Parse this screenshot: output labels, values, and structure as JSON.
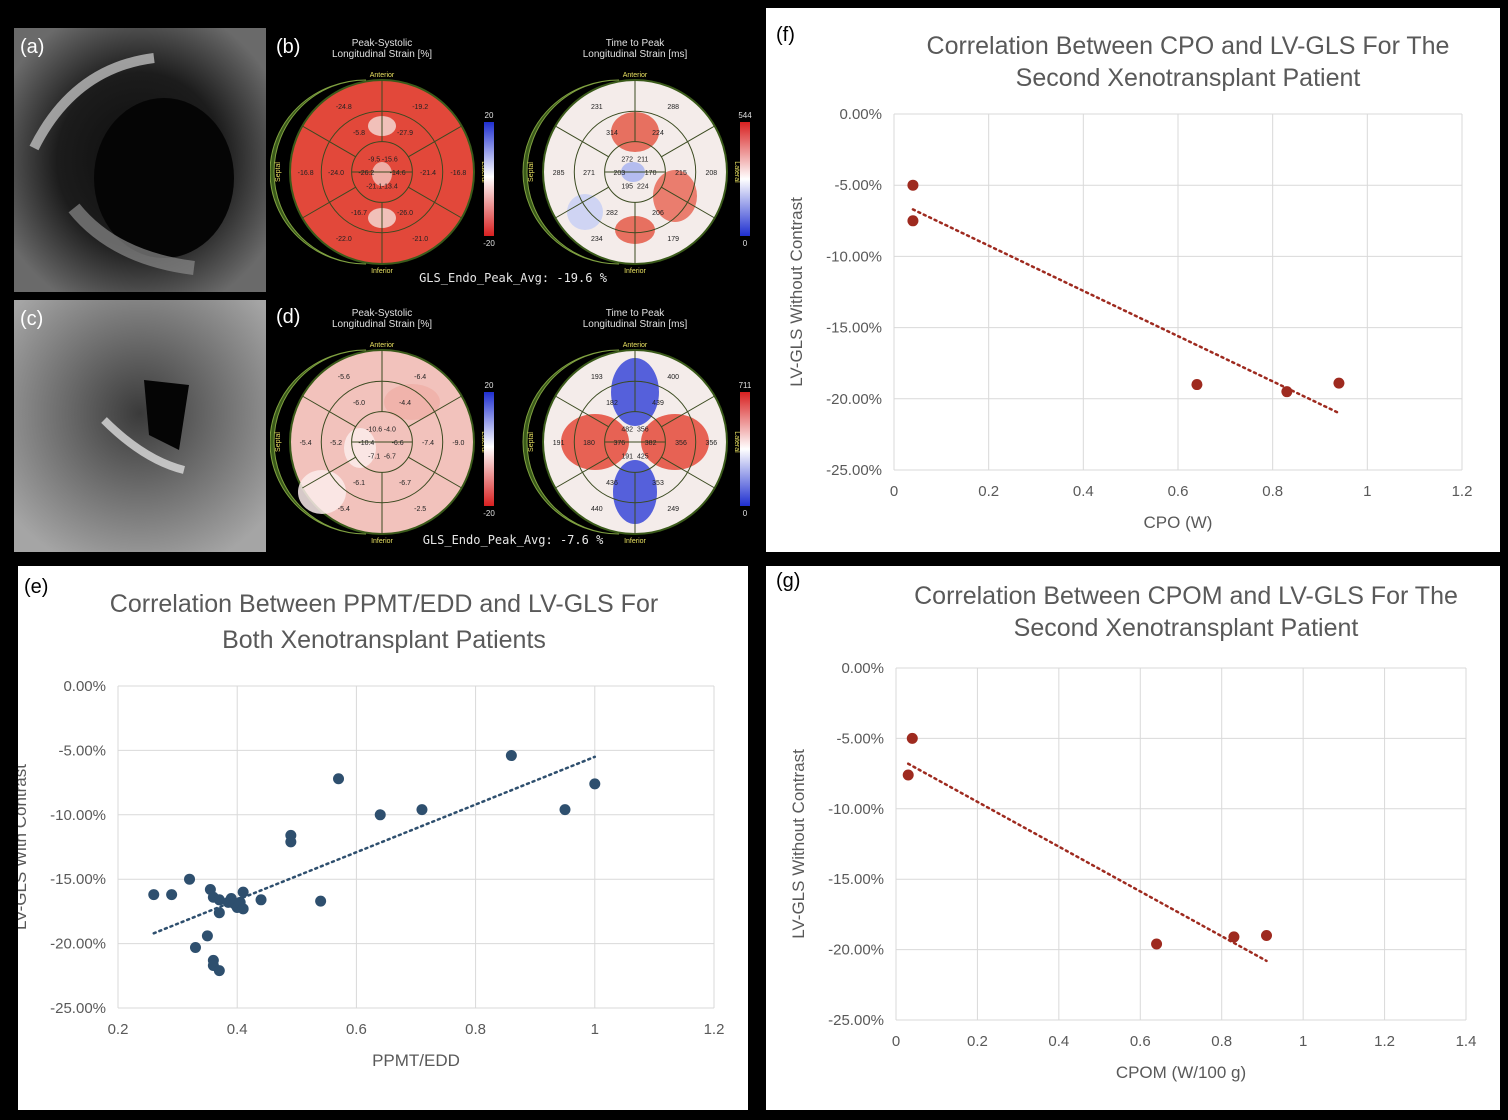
{
  "panel_labels": {
    "a": "(a)",
    "b": "(b)",
    "c": "(c)",
    "d": "(d)",
    "e": "(e)",
    "f": "(f)",
    "g": "(g)"
  },
  "bullseye": {
    "b": {
      "left_title": [
        "Peak-Systolic",
        "Longitudinal Strain [%]"
      ],
      "right_title": [
        "Time to Peak",
        "Longitudinal Strain [ms]"
      ],
      "footer": "GLS_Endo_Peak_Avg: -19.6 %",
      "left_scale": [
        "20",
        "-20"
      ],
      "right_scale": [
        "544",
        "0"
      ],
      "left_values": [
        "-24.8",
        "-19.2",
        "-16.8",
        "-21.0",
        "-22.0",
        "-16.8",
        "-5.8",
        "-27.9",
        "-21.4",
        "-26.0",
        "-16.7",
        "-24.0",
        "-9.5",
        "-15.6",
        "-14.6",
        "-13.4",
        "-21.1",
        "-26.2"
      ],
      "right_values": [
        "231",
        "288",
        "208",
        "179",
        "234",
        "285",
        "314",
        "224",
        "215",
        "206",
        "282",
        "271",
        "272",
        "211",
        "170",
        "224",
        "195",
        "203"
      ]
    },
    "d": {
      "left_title": [
        "Peak-Systolic",
        "Longitudinal Strain [%]"
      ],
      "right_title": [
        "Time to Peak",
        "Longitudinal Strain [ms]"
      ],
      "footer": "GLS_Endo_Peak_Avg: -7.6 %",
      "left_scale": [
        "20",
        "-20"
      ],
      "right_scale": [
        "711",
        "0"
      ],
      "left_values": [
        "-5.6",
        "-6.4",
        "-9.0",
        "-2.5",
        "-5.4",
        "-5.4",
        "-6.0",
        "-4.4",
        "-7.4",
        "-6.7",
        "-6.1",
        "-5.2",
        "-10.6",
        "-4.0",
        "-6.6",
        "-6.7",
        "-7.1",
        "-10.4"
      ],
      "right_values": [
        "193",
        "400",
        "356",
        "249",
        "440",
        "191",
        "182",
        "439",
        "356",
        "353",
        "436",
        "180",
        "482",
        "356",
        "382",
        "425",
        "191",
        "376"
      ]
    },
    "orient": {
      "anterior": "Anterior",
      "inferior": "Inferior",
      "septal": "Septal",
      "lateral": "Lateral"
    }
  },
  "chart_data": [
    {
      "id": "f",
      "type": "scatter",
      "title": [
        "Correlation Between CPO and LV-GLS For The",
        "Second Xenotransplant Patient"
      ],
      "xlabel": "CPO (W)",
      "ylabel": "LV-GLS Without Contrast",
      "xlim": [
        0,
        1.2
      ],
      "ylim": [
        -25,
        0
      ],
      "xticks": [
        0,
        0.2,
        0.4,
        0.6,
        0.8,
        1,
        1.2
      ],
      "xticklabels": [
        "0",
        "0.2",
        "0.4",
        "0.6",
        "0.8",
        "1",
        "1.2"
      ],
      "yticks": [
        0,
        -5,
        -10,
        -15,
        -20,
        -25
      ],
      "yticklabels": [
        "0.00%",
        "-5.00%",
        "-10.00%",
        "-15.00%",
        "-20.00%",
        "-25.00%"
      ],
      "grid": true,
      "color": "#9e2a1f",
      "points": [
        [
          0.04,
          -5.0
        ],
        [
          0.04,
          -7.5
        ],
        [
          0.64,
          -19.0
        ],
        [
          0.83,
          -19.5
        ],
        [
          0.94,
          -18.9
        ]
      ],
      "trendline": [
        [
          0.04,
          -6.7
        ],
        [
          0.94,
          -21.0
        ]
      ]
    },
    {
      "id": "e",
      "type": "scatter",
      "title": [
        "Correlation Between PPMT/EDD and LV-GLS For",
        "Both Xenotransplant Patients"
      ],
      "xlabel": "PPMT/EDD",
      "ylabel": "LV-GLS With Contrast",
      "xlim": [
        0.2,
        1.2
      ],
      "ylim": [
        -25,
        0
      ],
      "xticks": [
        0.2,
        0.4,
        0.6,
        0.8,
        1,
        1.2
      ],
      "xticklabels": [
        "0.2",
        "0.4",
        "0.6",
        "0.8",
        "1",
        "1.2"
      ],
      "yticks": [
        0,
        -5,
        -10,
        -15,
        -20,
        -25
      ],
      "yticklabels": [
        "0.00%",
        "-5.00%",
        "-10.00%",
        "-15.00%",
        "-20.00%",
        "-25.00%"
      ],
      "grid": true,
      "color": "#2e4f6e",
      "points": [
        [
          0.26,
          -16.2
        ],
        [
          0.29,
          -16.2
        ],
        [
          0.32,
          -15.0
        ],
        [
          0.33,
          -20.3
        ],
        [
          0.35,
          -19.4
        ],
        [
          0.355,
          -15.8
        ],
        [
          0.36,
          -16.4
        ],
        [
          0.36,
          -21.3
        ],
        [
          0.36,
          -21.7
        ],
        [
          0.37,
          -16.6
        ],
        [
          0.37,
          -17.6
        ],
        [
          0.37,
          -22.1
        ],
        [
          0.385,
          -16.8
        ],
        [
          0.39,
          -16.5
        ],
        [
          0.395,
          -16.9
        ],
        [
          0.4,
          -17.2
        ],
        [
          0.405,
          -16.8
        ],
        [
          0.41,
          -16.0
        ],
        [
          0.41,
          -17.3
        ],
        [
          0.44,
          -16.6
        ],
        [
          0.49,
          -11.6
        ],
        [
          0.49,
          -12.1
        ],
        [
          0.54,
          -16.7
        ],
        [
          0.57,
          -7.2
        ],
        [
          0.64,
          -10.0
        ],
        [
          0.71,
          -9.6
        ],
        [
          0.86,
          -5.4
        ],
        [
          0.95,
          -9.6
        ],
        [
          1.0,
          -7.6
        ]
      ],
      "trendline": [
        [
          0.26,
          -19.2
        ],
        [
          1.0,
          -5.5
        ]
      ]
    },
    {
      "id": "g",
      "type": "scatter",
      "title": [
        "Correlation Between CPOM and LV-GLS For The",
        "Second Xenotransplant Patient"
      ],
      "xlabel": "CPOM (W/100 g)",
      "ylabel": "LV-GLS Without Contrast",
      "xlim": [
        0,
        1.4
      ],
      "ylim": [
        -25,
        0
      ],
      "xticks": [
        0,
        0.2,
        0.4,
        0.6,
        0.8,
        1,
        1.2,
        1.4
      ],
      "xticklabels": [
        "0",
        "0.2",
        "0.4",
        "0.6",
        "0.8",
        "1",
        "1.2",
        "1.4"
      ],
      "yticks": [
        0,
        -5,
        -10,
        -15,
        -20,
        -25
      ],
      "yticklabels": [
        "0.00%",
        "-5.00%",
        "-10.00%",
        "-15.00%",
        "-20.00%",
        "-25.00%"
      ],
      "grid": true,
      "color": "#9e2a1f",
      "points": [
        [
          0.04,
          -5.0
        ],
        [
          0.03,
          -7.6
        ],
        [
          0.64,
          -19.6
        ],
        [
          0.83,
          -19.1
        ],
        [
          0.91,
          -19.0
        ]
      ],
      "trendline": [
        [
          0.03,
          -6.8
        ],
        [
          0.91,
          -20.8
        ]
      ]
    }
  ]
}
